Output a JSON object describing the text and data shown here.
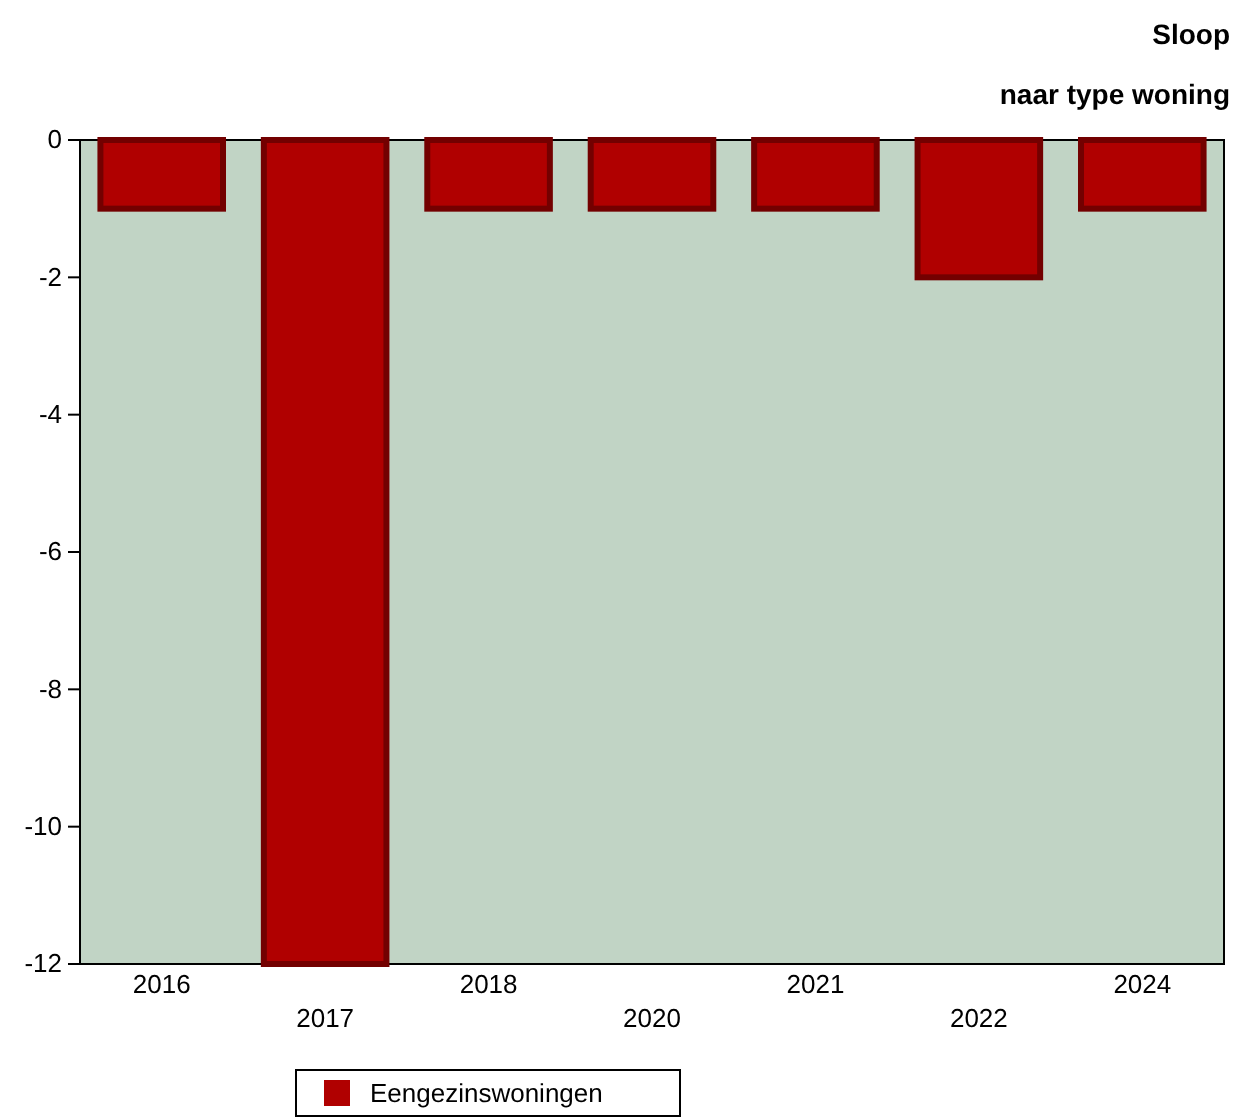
{
  "chart_data": {
    "type": "bar",
    "title": "Sloop",
    "subtitle": "naar type woning",
    "categories": [
      "2016",
      "2017",
      "2018",
      "2020",
      "2021",
      "2022",
      "2024"
    ],
    "series": [
      {
        "name": "Eengezinswoningen",
        "color": "#b00000",
        "values": [
          -1,
          -12,
          -1,
          -1,
          -1,
          -2,
          -1
        ]
      }
    ],
    "ylim": [
      -12,
      0
    ],
    "yticks": [
      -12,
      -10,
      -8,
      -6,
      -4,
      -2,
      0
    ],
    "grid": false,
    "legend": "bottom"
  }
}
